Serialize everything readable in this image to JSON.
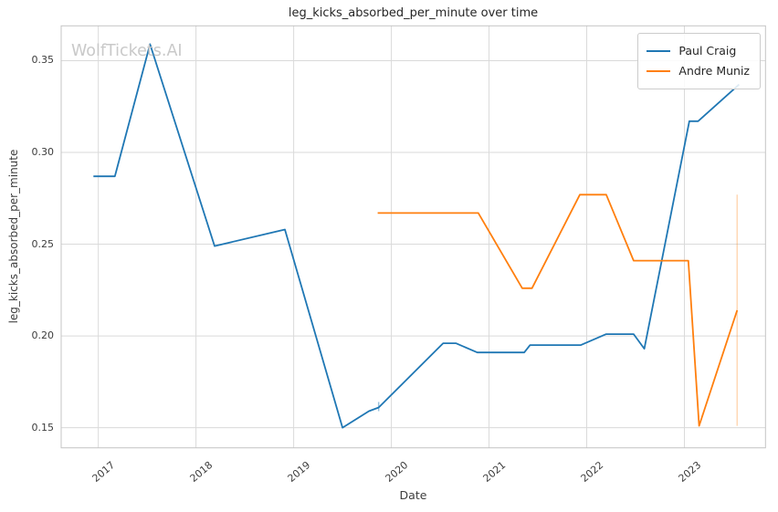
{
  "watermark": "WolfTickets.AI",
  "chart_data": {
    "type": "line",
    "title": "leg_kicks_absorbed_per_minute over time",
    "xlabel": "Date",
    "ylabel": "leg_kicks_absorbed_per_minute",
    "grid": true,
    "legend_position": "upper right",
    "x_ticks": [
      2017,
      2018,
      2019,
      2020,
      2021,
      2022,
      2023
    ],
    "y_ticks": [
      0.15,
      0.2,
      0.25,
      0.3,
      0.35
    ],
    "x_range": [
      2016.62,
      2023.83
    ],
    "y_range": [
      0.139,
      0.369
    ],
    "series": [
      {
        "name": "Paul Craig",
        "color": "#1f77b4",
        "x": [
          2016.95,
          2017.17,
          2017.53,
          2018.19,
          2018.91,
          2019.5,
          2019.77,
          2019.87,
          2020.53,
          2020.66,
          2020.88,
          2021.36,
          2021.42,
          2021.94,
          2022.2,
          2022.48,
          2022.59,
          2023.05,
          2023.14,
          2023.56
        ],
        "y": [
          0.287,
          0.287,
          0.359,
          0.249,
          0.258,
          0.15,
          0.159,
          0.161,
          0.196,
          0.196,
          0.191,
          0.191,
          0.195,
          0.195,
          0.201,
          0.201,
          0.193,
          0.317,
          0.317,
          0.337
        ]
      },
      {
        "name": "Andre Muniz",
        "color": "#ff7f0e",
        "x": [
          2019.86,
          2020.89,
          2021.34,
          2021.44,
          2021.93,
          2022.2,
          2022.48,
          2023.04,
          2023.15,
          2023.54
        ],
        "y": [
          0.267,
          0.267,
          0.226,
          0.226,
          0.277,
          0.277,
          0.241,
          0.241,
          0.151,
          0.214
        ]
      }
    ],
    "error_bars": [
      {
        "series": 0,
        "x": 2019.87,
        "y_low": 0.159,
        "y_high": 0.164,
        "opacity": 0.45
      },
      {
        "series": 1,
        "x": 2023.54,
        "y_low": 0.151,
        "y_high": 0.277,
        "opacity": 0.3
      }
    ]
  }
}
